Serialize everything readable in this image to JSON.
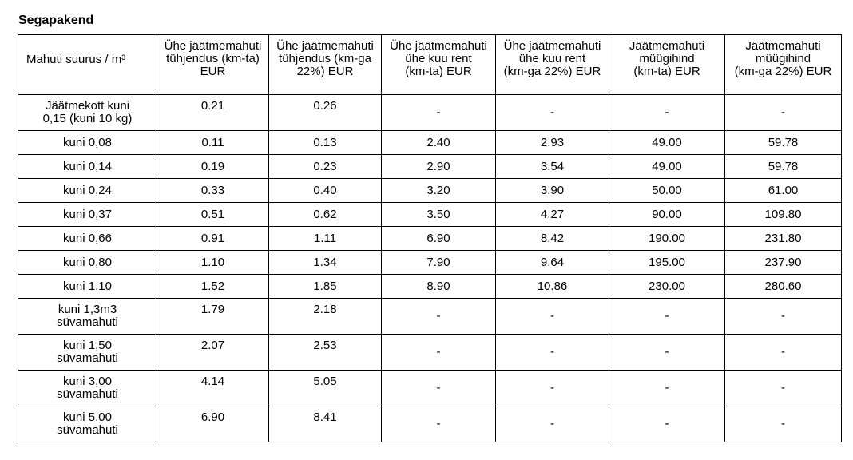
{
  "title": "Segapakend",
  "headers": [
    [
      "Mahuti suurus / m³"
    ],
    [
      "Ühe jäätmemahuti",
      "tühjendus (km-ta)",
      "EUR"
    ],
    [
      "Ühe jäätmemahuti",
      "tühjendus (km-ga",
      "22%) EUR"
    ],
    [
      "Ühe jäätmemahuti",
      "ühe kuu rent",
      "(km-ta) EUR"
    ],
    [
      "Ühe jäätmemahuti",
      "ühe kuu rent",
      "(km-ga 22%) EUR"
    ],
    [
      "Jäätmemahuti",
      "müügihind",
      "(km-ta) EUR"
    ],
    [
      "Jäätmemahuti",
      "müügihind",
      "(km-ga 22%) EUR"
    ]
  ],
  "rows": [
    {
      "size": [
        "Jäätmekott kuni",
        "0,15 (kuni 10 kg)"
      ],
      "empty_ex": "0.21",
      "empty_inc": "0.26",
      "rent_ex": "-",
      "rent_inc": "-",
      "sale_ex": "-",
      "sale_inc": "-"
    },
    {
      "size": [
        "kuni 0,08"
      ],
      "empty_ex": "0.11",
      "empty_inc": "0.13",
      "rent_ex": "2.40",
      "rent_inc": "2.93",
      "sale_ex": "49.00",
      "sale_inc": "59.78"
    },
    {
      "size": [
        "kuni 0,14"
      ],
      "empty_ex": "0.19",
      "empty_inc": "0.23",
      "rent_ex": "2.90",
      "rent_inc": "3.54",
      "sale_ex": "49.00",
      "sale_inc": "59.78"
    },
    {
      "size": [
        "kuni 0,24"
      ],
      "empty_ex": "0.33",
      "empty_inc": "0.40",
      "rent_ex": "3.20",
      "rent_inc": "3.90",
      "sale_ex": "50.00",
      "sale_inc": "61.00"
    },
    {
      "size": [
        "kuni 0,37"
      ],
      "empty_ex": "0.51",
      "empty_inc": "0.62",
      "rent_ex": "3.50",
      "rent_inc": "4.27",
      "sale_ex": "90.00",
      "sale_inc": "109.80"
    },
    {
      "size": [
        "kuni 0,66"
      ],
      "empty_ex": "0.91",
      "empty_inc": "1.11",
      "rent_ex": "6.90",
      "rent_inc": "8.42",
      "sale_ex": "190.00",
      "sale_inc": "231.80"
    },
    {
      "size": [
        "kuni 0,80"
      ],
      "empty_ex": "1.10",
      "empty_inc": "1.34",
      "rent_ex": "7.90",
      "rent_inc": "9.64",
      "sale_ex": "195.00",
      "sale_inc": "237.90"
    },
    {
      "size": [
        "kuni 1,10"
      ],
      "empty_ex": "1.52",
      "empty_inc": "1.85",
      "rent_ex": "8.90",
      "rent_inc": "10.86",
      "sale_ex": "230.00",
      "sale_inc": "280.60"
    },
    {
      "size": [
        "kuni 1,3m3",
        "süvamahuti"
      ],
      "empty_ex": "1.79",
      "empty_inc": "2.18",
      "rent_ex": "-",
      "rent_inc": "-",
      "sale_ex": "-",
      "sale_inc": "-"
    },
    {
      "size": [
        "kuni 1,50",
        "süvamahuti"
      ],
      "empty_ex": "2.07",
      "empty_inc": "2.53",
      "rent_ex": "-",
      "rent_inc": "-",
      "sale_ex": "-",
      "sale_inc": "-"
    },
    {
      "size": [
        "kuni 3,00",
        "süvamahuti"
      ],
      "empty_ex": "4.14",
      "empty_inc": "5.05",
      "rent_ex": "-",
      "rent_inc": "-",
      "sale_ex": "-",
      "sale_inc": "-"
    },
    {
      "size": [
        "kuni 5,00",
        "süvamahuti"
      ],
      "empty_ex": "6.90",
      "empty_inc": "8.41",
      "rent_ex": "-",
      "rent_inc": "-",
      "sale_ex": "-",
      "sale_inc": "-"
    }
  ]
}
